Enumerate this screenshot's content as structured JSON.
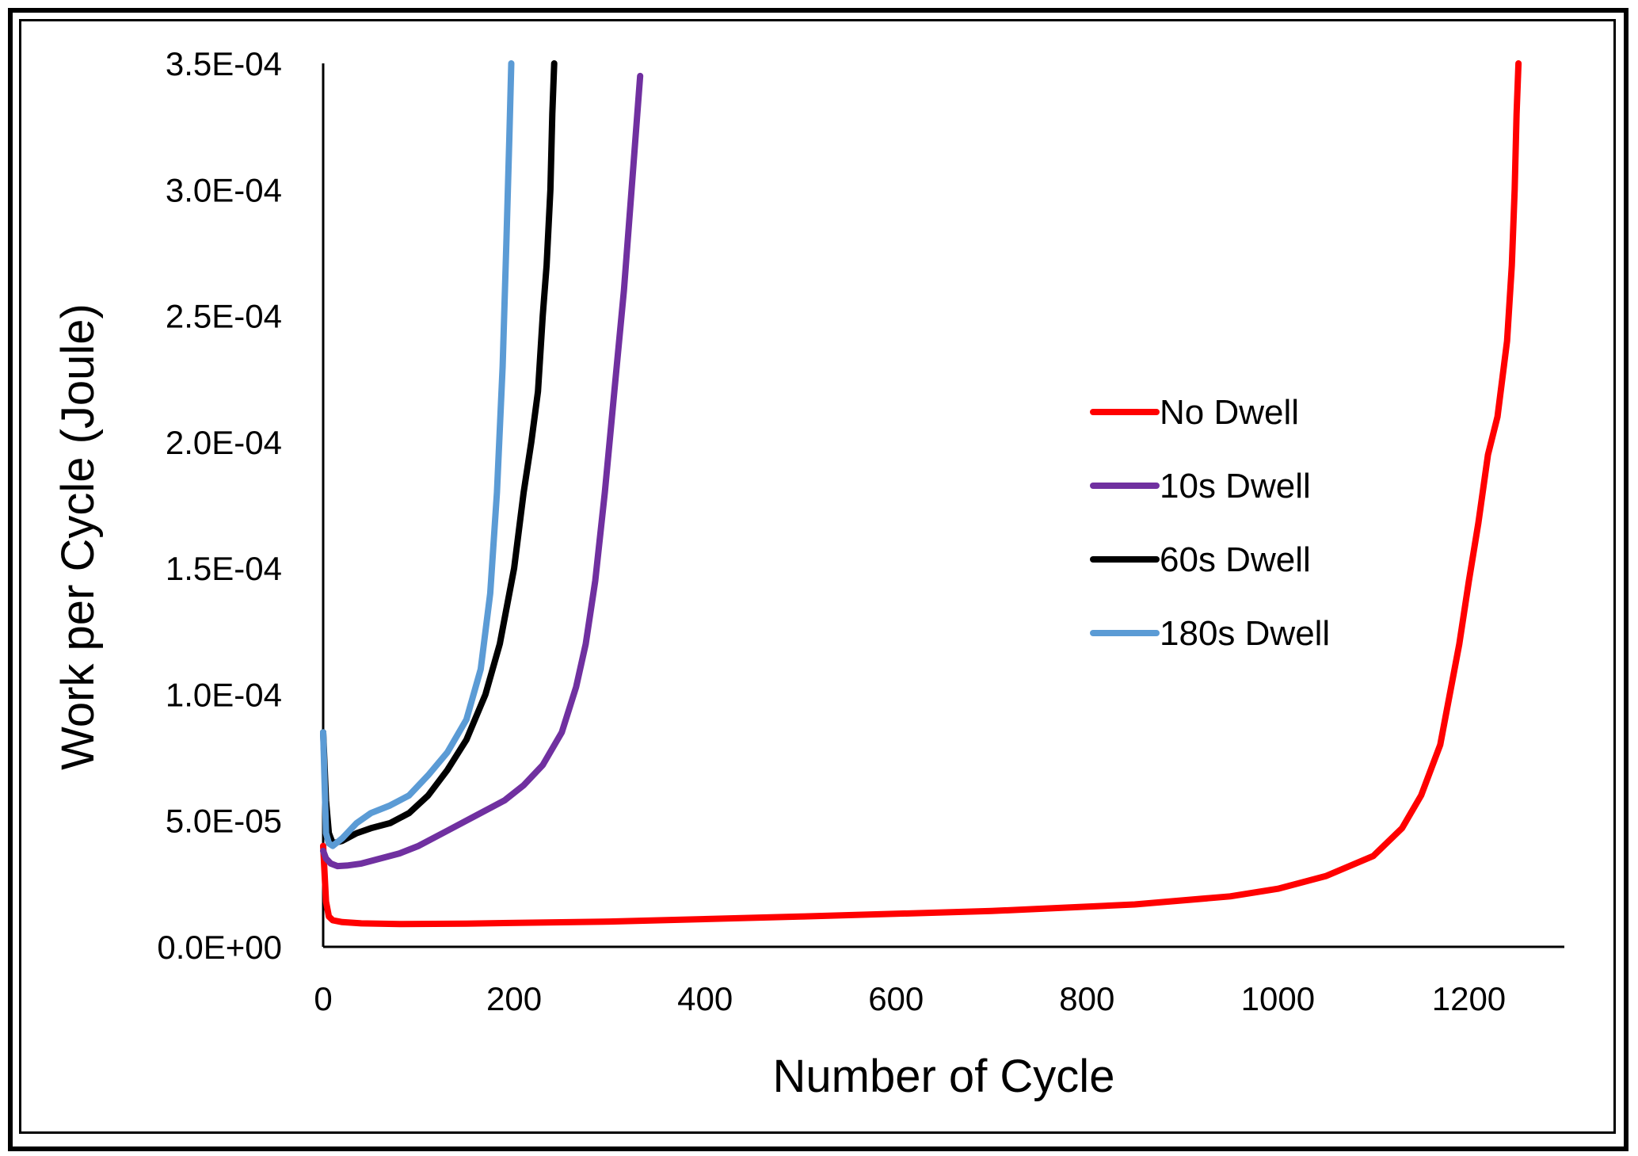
{
  "chart_data": {
    "type": "line",
    "title": "",
    "xlabel": "Number of Cycle",
    "ylabel": "Work per Cycle (Joule)",
    "xlim": [
      0,
      1300
    ],
    "ylim": [
      0,
      0.00035
    ],
    "x_ticks": [
      "0",
      "200",
      "400",
      "600",
      "800",
      "1000",
      "1200"
    ],
    "x_tick_values": [
      0,
      200,
      400,
      600,
      800,
      1000,
      1200
    ],
    "y_ticks": [
      "0.0E+00",
      "5.0E-05",
      "1.0E-04",
      "1.5E-04",
      "2.0E-04",
      "2.5E-04",
      "3.0E-04",
      "3.5E-04"
    ],
    "y_tick_values": [
      0,
      5e-05,
      0.0001,
      0.00015,
      0.0002,
      0.00025,
      0.0003,
      0.00035
    ],
    "grid": false,
    "legend_position": "right",
    "series": [
      {
        "name": "No Dwell",
        "color": "#ff0000",
        "x": [
          0,
          3,
          6,
          10,
          20,
          40,
          80,
          150,
          300,
          500,
          700,
          850,
          950,
          1000,
          1050,
          1100,
          1130,
          1150,
          1170,
          1190,
          1200,
          1210,
          1220,
          1230,
          1240,
          1245,
          1248,
          1250,
          1252
        ],
        "y": [
          4e-05,
          1.8e-05,
          1.2e-05,
          1.05e-05,
          9.8e-06,
          9.3e-06,
          9e-06,
          9.2e-06,
          1e-05,
          1.2e-05,
          1.42e-05,
          1.68e-05,
          2e-05,
          2.3e-05,
          2.8e-05,
          3.6e-05,
          4.7e-05,
          6e-05,
          8e-05,
          0.00012,
          0.000145,
          0.000168,
          0.000195,
          0.00021,
          0.00024,
          0.00027,
          0.0003,
          0.00033,
          0.00035
        ]
      },
      {
        "name": "10s Dwell",
        "color": "#7030a0",
        "x": [
          0,
          3,
          8,
          15,
          25,
          40,
          60,
          80,
          100,
          130,
          160,
          190,
          210,
          230,
          250,
          265,
          275,
          285,
          295,
          305,
          315,
          325,
          332
        ],
        "y": [
          3.8e-05,
          3.5e-05,
          3.3e-05,
          3.2e-05,
          3.22e-05,
          3.3e-05,
          3.5e-05,
          3.7e-05,
          4e-05,
          4.6e-05,
          5.2e-05,
          5.8e-05,
          6.4e-05,
          7.2e-05,
          8.5e-05,
          0.000103,
          0.00012,
          0.000145,
          0.00018,
          0.00022,
          0.00026,
          0.00031,
          0.000345
        ]
      },
      {
        "name": "60s Dwell",
        "color": "#000000",
        "x": [
          0,
          3,
          6,
          10,
          20,
          35,
          50,
          70,
          90,
          110,
          130,
          150,
          170,
          185,
          200,
          210,
          218,
          225,
          230,
          234,
          238,
          240,
          242
        ],
        "y": [
          8.5e-05,
          5.8e-05,
          4.5e-05,
          4.1e-05,
          4.2e-05,
          4.5e-05,
          4.7e-05,
          4.9e-05,
          5.3e-05,
          6e-05,
          7e-05,
          8.2e-05,
          0.0001,
          0.00012,
          0.00015,
          0.00018,
          0.0002,
          0.00022,
          0.00025,
          0.00027,
          0.0003,
          0.00033,
          0.00035
        ]
      },
      {
        "name": "180s Dwell",
        "color": "#5b9bd5",
        "x": [
          0,
          3,
          6,
          10,
          20,
          35,
          50,
          70,
          90,
          110,
          130,
          150,
          165,
          175,
          182,
          188,
          192,
          195,
          197
        ],
        "y": [
          8.5e-05,
          4.5e-05,
          4.1e-05,
          4e-05,
          4.3e-05,
          4.9e-05,
          5.3e-05,
          5.6e-05,
          6e-05,
          6.8e-05,
          7.7e-05,
          9e-05,
          0.00011,
          0.00014,
          0.00018,
          0.00023,
          0.00028,
          0.00032,
          0.00035
        ]
      }
    ]
  }
}
